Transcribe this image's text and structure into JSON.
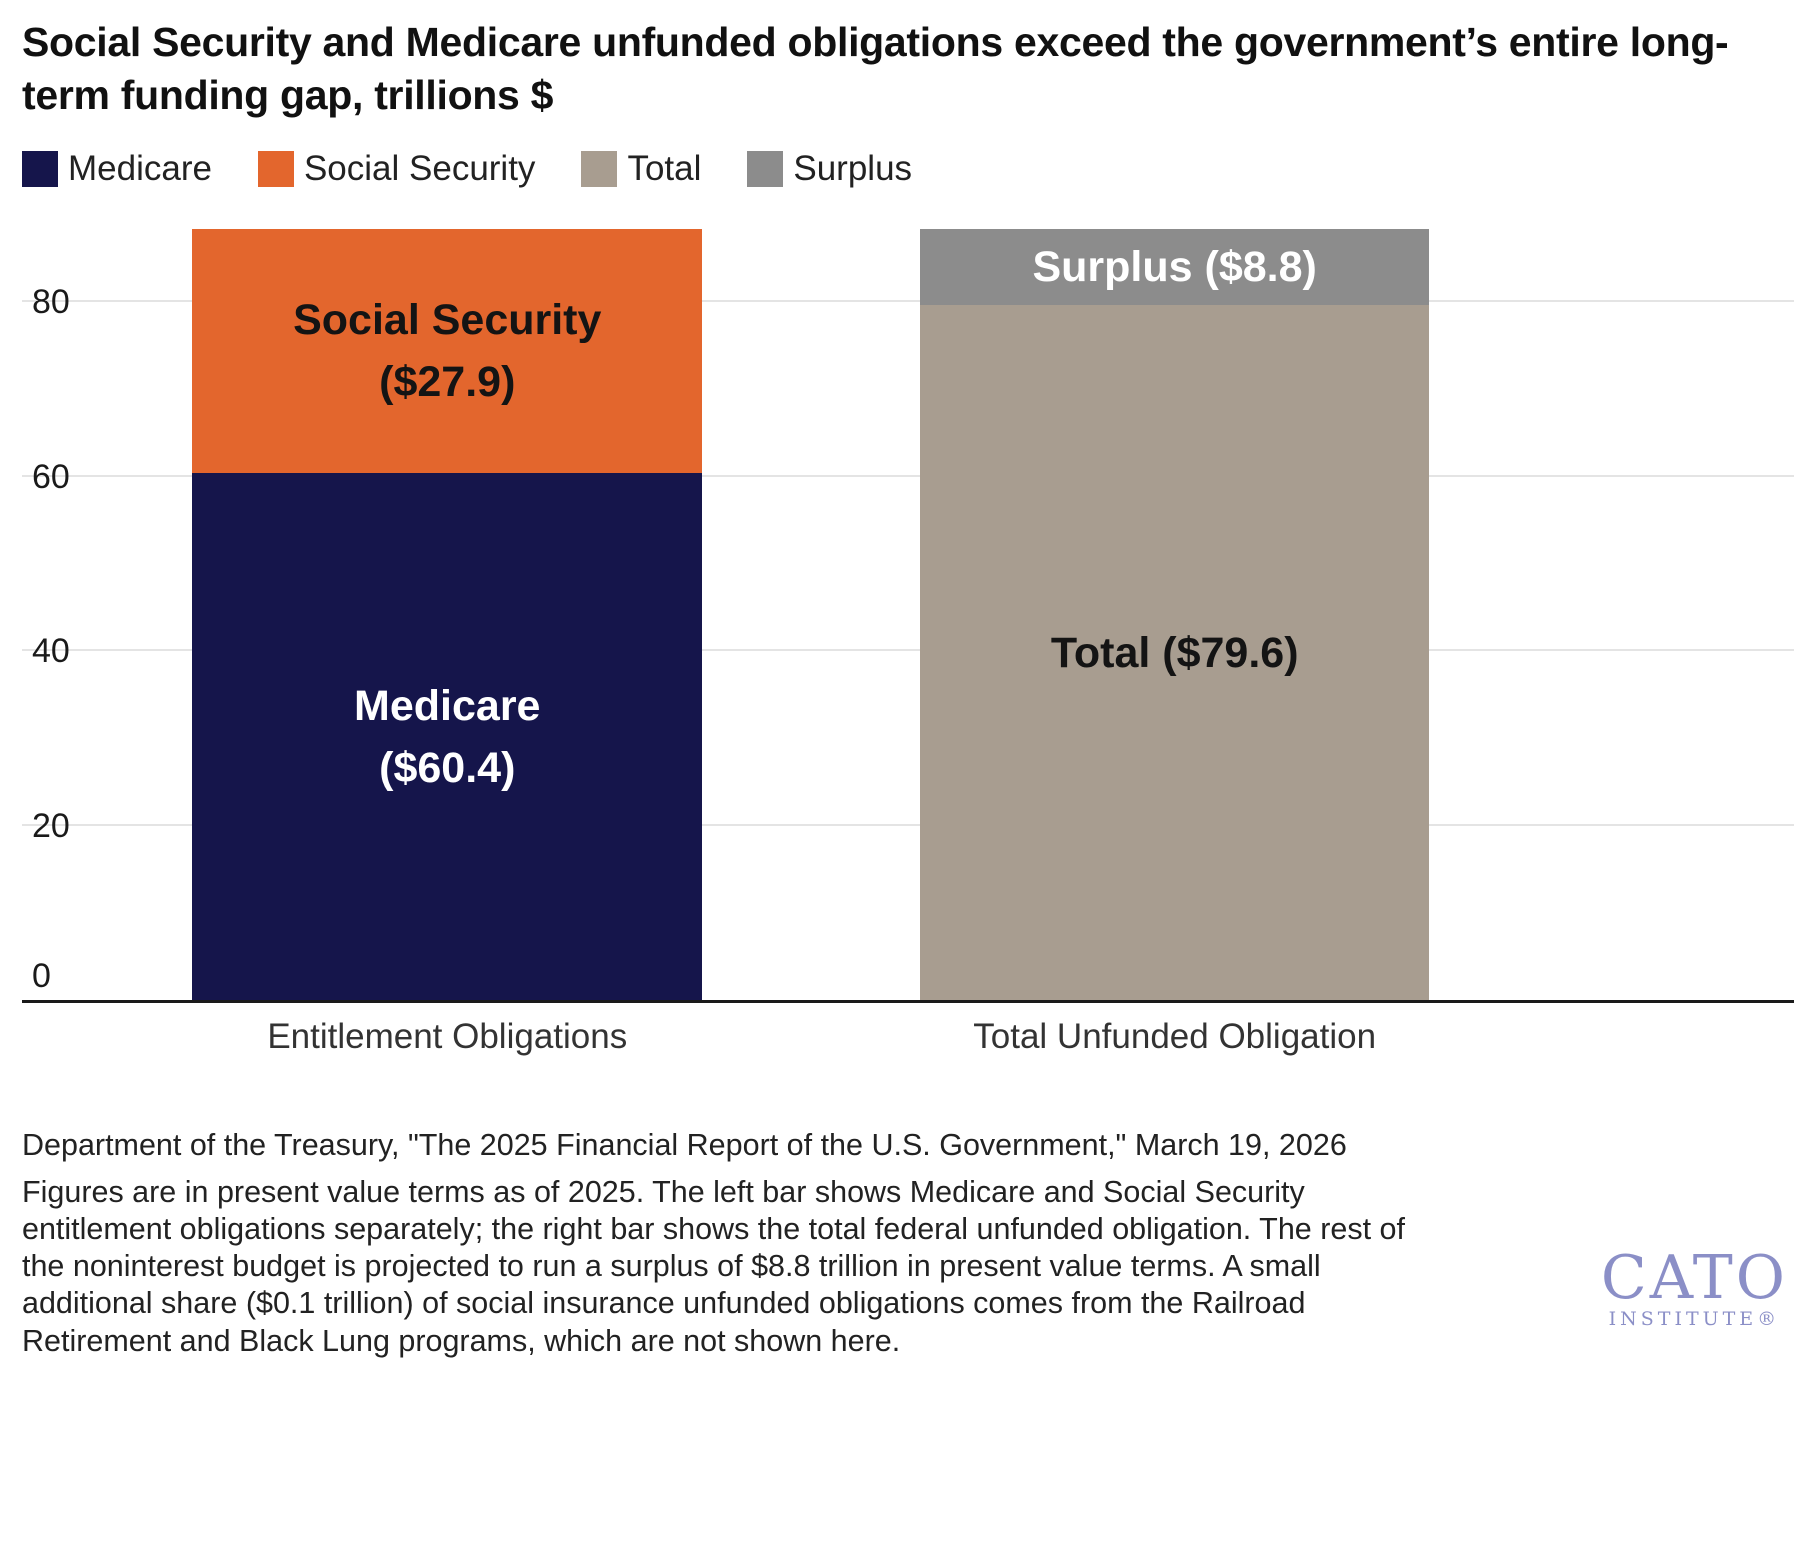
{
  "title": "Social Security and Medicare unfunded obligations exceed the government’s entire long-term funding gap, trillions $",
  "legend": [
    {
      "label": "Medicare",
      "color": "#15154b"
    },
    {
      "label": "Social Security",
      "color": "#e3662d"
    },
    {
      "label": "Total",
      "color": "#a89d90"
    },
    {
      "label": "Surplus",
      "color": "#8c8c8c"
    }
  ],
  "chart_data": {
    "type": "bar",
    "stacked": true,
    "title": "Social Security and Medicare unfunded obligations exceed the government’s entire long-term funding gap, trillions $",
    "ylabel": "trillions $",
    "ylim": [
      0,
      88.4
    ],
    "yticks": [
      0,
      20,
      40,
      60,
      80
    ],
    "grid": true,
    "legend_position": "top",
    "categories": [
      "Entitlement Obligations",
      "Total Unfunded Obligation"
    ],
    "bars": [
      {
        "category": "Entitlement Obligations",
        "segments": [
          {
            "name": "Medicare",
            "value": 60.4,
            "color": "#15154b",
            "text_color": "#ffffff",
            "label_lines": [
              "Medicare",
              "($60.4)"
            ]
          },
          {
            "name": "Social Security",
            "value": 27.9,
            "color": "#e3662d",
            "text_color": "#141414",
            "label_lines": [
              "Social Security",
              "($27.9)"
            ]
          }
        ]
      },
      {
        "category": "Total Unfunded Obligation",
        "segments": [
          {
            "name": "Total",
            "value": 79.6,
            "color": "#a89d90",
            "text_color": "#141414",
            "label_lines": [
              "Total ($79.6)"
            ]
          },
          {
            "name": "Surplus",
            "value": 8.8,
            "color": "#8c8c8c",
            "text_color": "#ffffff",
            "label_lines": [
              "Surplus ($8.8)"
            ]
          }
        ]
      }
    ]
  },
  "source": "Department of the Treasury, \"The 2025 Financial Report of the U.S. Government,\" March 19, 2026",
  "note": "Figures are in present value terms as of 2025. The left bar shows Medicare and Social Security entitlement obligations separately; the right bar shows the total federal unfunded obligation. The rest of the noninterest budget is projected to run a surplus of $8.8 trillion in present value terms. A small additional share ($0.1 trillion) of social insurance unfunded obligations comes from the Railroad Retirement and Black Lung programs, which are not shown here.",
  "logo": {
    "name": "CATO",
    "sub": "INSTITUTE®",
    "color": "#8b8fc7"
  }
}
